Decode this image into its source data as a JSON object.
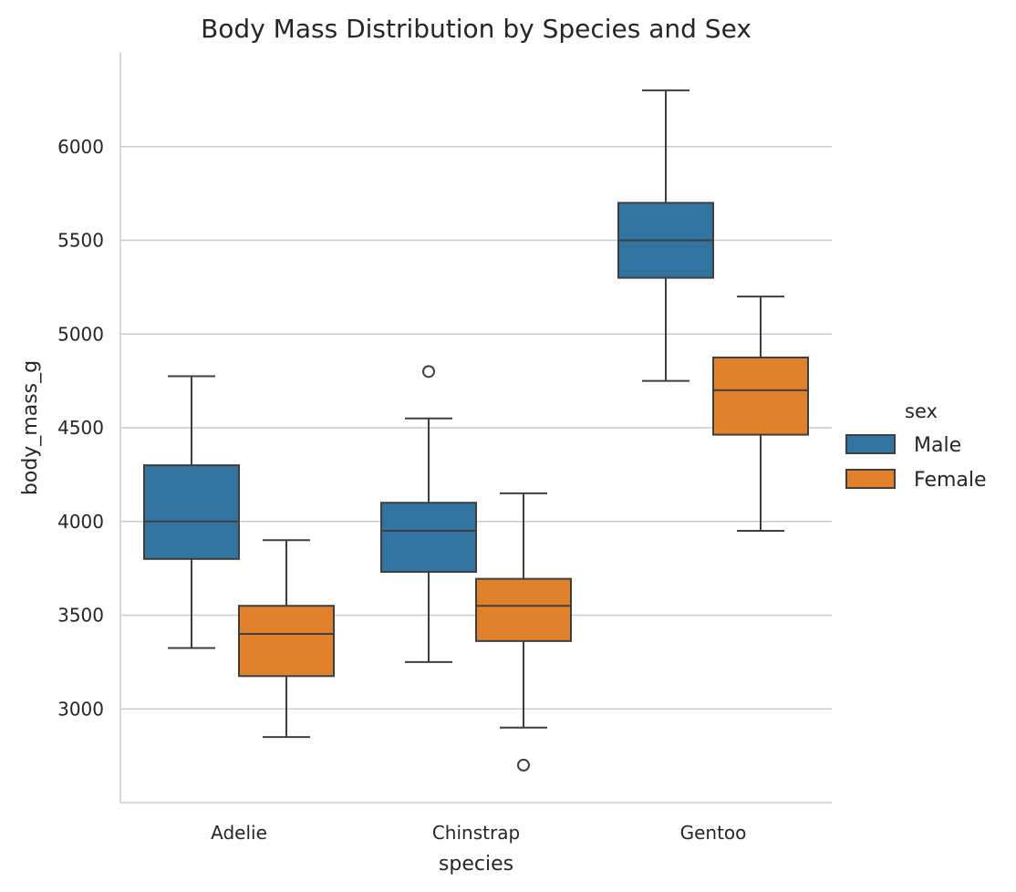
{
  "chart_data": {
    "type": "box",
    "title": "Body Mass Distribution by Species and Sex",
    "xlabel": "species",
    "ylabel": "body_mass_g",
    "categories": [
      "Adelie",
      "Chinstrap",
      "Gentoo"
    ],
    "ylim": [
      2500,
      6500
    ],
    "yticks": [
      3000,
      3500,
      4000,
      4500,
      5000,
      5500,
      6000
    ],
    "grid": "horizontal",
    "legend": {
      "title": "sex",
      "placement": "right"
    },
    "series": [
      {
        "name": "Male",
        "color": "#3274a1",
        "boxes": [
          {
            "whisker_low": 3325,
            "q1": 3800,
            "median": 4000,
            "q3": 4300,
            "whisker_high": 4775,
            "outliers": []
          },
          {
            "whisker_low": 3250,
            "q1": 3731,
            "median": 3950,
            "q3": 4100,
            "whisker_high": 4550,
            "outliers": [
              4800
            ]
          },
          {
            "whisker_low": 4750,
            "q1": 5300,
            "median": 5500,
            "q3": 5700,
            "whisker_high": 6300,
            "outliers": []
          }
        ]
      },
      {
        "name": "Female",
        "color": "#e1812c",
        "boxes": [
          {
            "whisker_low": 2850,
            "q1": 3175,
            "median": 3400,
            "q3": 3550,
            "whisker_high": 3900,
            "outliers": []
          },
          {
            "whisker_low": 2900,
            "q1": 3362,
            "median": 3550,
            "q3": 3694,
            "whisker_high": 4150,
            "outliers": [
              2700
            ]
          },
          {
            "whisker_low": 3950,
            "q1": 4463,
            "median": 4700,
            "q3": 4875,
            "whisker_high": 5200,
            "outliers": []
          }
        ]
      }
    ]
  }
}
